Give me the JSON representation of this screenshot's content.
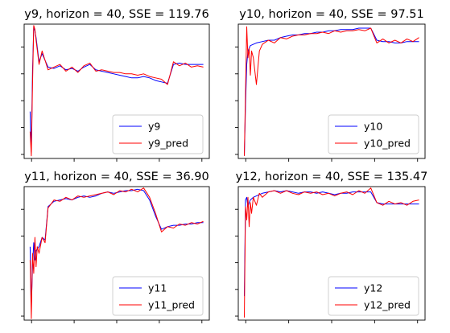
{
  "chart_data": [
    {
      "type": "line",
      "title": "y9, horizon = 40, SSE = 119.76",
      "xlabel": "",
      "ylabel": "",
      "xlim": [
        -10,
        300
      ],
      "ylim": [
        0,
        1
      ],
      "grid": false,
      "legend_position": "lower-right",
      "series": [
        {
          "name": "y9",
          "color": "#0000ff",
          "x": [
            0,
            2,
            4,
            6,
            8,
            10,
            15,
            20,
            30,
            40,
            50,
            60,
            70,
            80,
            90,
            100,
            110,
            120,
            130,
            140,
            150,
            160,
            170,
            180,
            190,
            200,
            210,
            220,
            230,
            240,
            250,
            260,
            270,
            280,
            290
          ],
          "values": [
            0.35,
            0.05,
            0.65,
            0.98,
            0.95,
            0.9,
            0.72,
            0.78,
            0.68,
            0.67,
            0.69,
            0.66,
            0.67,
            0.65,
            0.68,
            0.7,
            0.66,
            0.65,
            0.64,
            0.63,
            0.62,
            0.61,
            0.6,
            0.6,
            0.61,
            0.6,
            0.58,
            0.57,
            0.56,
            0.7,
            0.71,
            0.7,
            0.7,
            0.7,
            0.7
          ]
        },
        {
          "name": "y9_pred",
          "color": "#ff0000",
          "x": [
            0,
            2,
            4,
            6,
            8,
            10,
            15,
            20,
            30,
            40,
            50,
            60,
            70,
            80,
            90,
            100,
            110,
            120,
            130,
            140,
            150,
            160,
            170,
            180,
            190,
            200,
            210,
            220,
            230,
            240,
            250,
            260,
            270,
            280,
            290
          ],
          "values": [
            0.2,
            0.02,
            0.55,
            0.99,
            0.96,
            0.88,
            0.7,
            0.8,
            0.66,
            0.68,
            0.7,
            0.65,
            0.68,
            0.64,
            0.69,
            0.71,
            0.65,
            0.66,
            0.65,
            0.64,
            0.64,
            0.63,
            0.63,
            0.62,
            0.63,
            0.61,
            0.6,
            0.59,
            0.55,
            0.72,
            0.69,
            0.71,
            0.68,
            0.69,
            0.68
          ]
        }
      ]
    },
    {
      "type": "line",
      "title": "y10, horizon = 40, SSE = 97.51",
      "xlabel": "",
      "ylabel": "",
      "xlim": [
        -10,
        300
      ],
      "ylim": [
        0,
        1
      ],
      "grid": false,
      "legend_position": "lower-right",
      "series": [
        {
          "name": "y10",
          "color": "#0000ff",
          "x": [
            0,
            2,
            4,
            6,
            8,
            10,
            15,
            20,
            30,
            40,
            50,
            60,
            70,
            80,
            90,
            100,
            110,
            120,
            130,
            140,
            150,
            160,
            170,
            180,
            190,
            200,
            210,
            220,
            230,
            240,
            250,
            260,
            270,
            280,
            290
          ],
          "values": [
            0.02,
            0.4,
            0.7,
            0.8,
            0.82,
            0.84,
            0.85,
            0.86,
            0.87,
            0.88,
            0.88,
            0.9,
            0.91,
            0.92,
            0.92,
            0.93,
            0.93,
            0.94,
            0.94,
            0.95,
            0.95,
            0.96,
            0.96,
            0.96,
            0.97,
            0.97,
            0.97,
            0.88,
            0.87,
            0.87,
            0.86,
            0.86,
            0.87,
            0.87,
            0.87
          ]
        },
        {
          "name": "y10_pred",
          "color": "#ff0000",
          "x": [
            0,
            2,
            4,
            6,
            8,
            10,
            12,
            15,
            20,
            25,
            30,
            40,
            50,
            60,
            70,
            80,
            90,
            100,
            110,
            120,
            130,
            140,
            150,
            160,
            170,
            180,
            190,
            200,
            210,
            220,
            230,
            240,
            250,
            260,
            270,
            280,
            290
          ],
          "values": [
            0.02,
            0.5,
            0.98,
            0.75,
            0.82,
            0.62,
            0.8,
            0.75,
            0.55,
            0.8,
            0.85,
            0.88,
            0.86,
            0.9,
            0.89,
            0.91,
            0.92,
            0.92,
            0.93,
            0.93,
            0.94,
            0.93,
            0.95,
            0.94,
            0.95,
            0.95,
            0.96,
            0.95,
            0.97,
            0.86,
            0.89,
            0.86,
            0.88,
            0.86,
            0.89,
            0.87,
            0.9
          ]
        }
      ]
    },
    {
      "type": "line",
      "title": "y11, horizon = 40, SSE = 36.90",
      "xlabel": "",
      "ylabel": "",
      "xlim": [
        -10,
        300
      ],
      "ylim": [
        0,
        1
      ],
      "grid": false,
      "legend_position": "lower-right",
      "series": [
        {
          "name": "y11",
          "color": "#0000ff",
          "x": [
            0,
            2,
            4,
            6,
            8,
            10,
            15,
            20,
            25,
            30,
            40,
            50,
            60,
            70,
            80,
            90,
            100,
            110,
            120,
            130,
            140,
            150,
            160,
            170,
            180,
            190,
            200,
            210,
            220,
            230,
            240,
            250,
            260,
            270,
            280,
            290
          ],
          "values": [
            0.55,
            0.1,
            0.4,
            0.58,
            0.45,
            0.52,
            0.55,
            0.62,
            0.6,
            0.85,
            0.89,
            0.9,
            0.91,
            0.9,
            0.92,
            0.93,
            0.92,
            0.93,
            0.95,
            0.96,
            0.95,
            0.96,
            0.97,
            0.97,
            0.98,
            0.97,
            0.9,
            0.78,
            0.68,
            0.7,
            0.71,
            0.71,
            0.72,
            0.72,
            0.73,
            0.73
          ]
        },
        {
          "name": "y11_pred",
          "color": "#ff0000",
          "x": [
            0,
            2,
            4,
            6,
            8,
            10,
            12,
            15,
            20,
            25,
            30,
            40,
            50,
            60,
            70,
            80,
            90,
            100,
            110,
            120,
            130,
            140,
            150,
            160,
            170,
            180,
            190,
            200,
            210,
            220,
            230,
            240,
            250,
            260,
            270,
            280,
            290
          ],
          "values": [
            0.45,
            0.01,
            0.5,
            0.35,
            0.62,
            0.4,
            0.55,
            0.5,
            0.62,
            0.58,
            0.84,
            0.9,
            0.89,
            0.92,
            0.9,
            0.93,
            0.92,
            0.93,
            0.94,
            0.95,
            0.96,
            0.94,
            0.97,
            0.96,
            0.98,
            0.96,
            0.99,
            0.92,
            0.8,
            0.66,
            0.7,
            0.69,
            0.72,
            0.71,
            0.73,
            0.72,
            0.74
          ]
        }
      ]
    },
    {
      "type": "line",
      "title": "y12, horizon = 40, SSE = 135.47",
      "xlabel": "",
      "ylabel": "",
      "xlim": [
        -10,
        300
      ],
      "ylim": [
        0,
        1
      ],
      "grid": false,
      "legend_position": "lower-right",
      "series": [
        {
          "name": "y12",
          "color": "#0000ff",
          "x": [
            0,
            2,
            4,
            6,
            8,
            10,
            15,
            20,
            30,
            40,
            50,
            60,
            70,
            80,
            90,
            100,
            110,
            120,
            130,
            140,
            150,
            160,
            170,
            180,
            190,
            200,
            210,
            220,
            230,
            240,
            250,
            260,
            270,
            280,
            290
          ],
          "values": [
            0.18,
            0.9,
            0.92,
            0.85,
            0.88,
            0.9,
            0.92,
            0.93,
            0.95,
            0.96,
            0.97,
            0.96,
            0.97,
            0.96,
            0.95,
            0.96,
            0.96,
            0.95,
            0.96,
            0.95,
            0.94,
            0.95,
            0.95,
            0.96,
            0.96,
            0.96,
            0.96,
            0.88,
            0.87,
            0.87,
            0.87,
            0.87,
            0.87,
            0.87,
            0.87
          ]
        },
        {
          "name": "y12_pred",
          "color": "#ff0000",
          "x": [
            0,
            2,
            4,
            6,
            8,
            10,
            12,
            15,
            20,
            25,
            30,
            40,
            50,
            60,
            70,
            80,
            90,
            100,
            110,
            120,
            130,
            140,
            150,
            160,
            170,
            180,
            190,
            200,
            210,
            220,
            230,
            240,
            250,
            260,
            270,
            280,
            290
          ],
          "values": [
            0.02,
            0.85,
            0.75,
            0.92,
            0.7,
            0.88,
            0.8,
            0.92,
            0.86,
            0.95,
            0.92,
            0.96,
            0.97,
            0.95,
            0.97,
            0.95,
            0.94,
            0.96,
            0.95,
            0.96,
            0.94,
            0.95,
            0.93,
            0.95,
            0.96,
            0.94,
            0.97,
            0.95,
            0.99,
            0.88,
            0.86,
            0.89,
            0.87,
            0.88,
            0.86,
            0.89,
            0.9
          ]
        }
      ]
    }
  ]
}
